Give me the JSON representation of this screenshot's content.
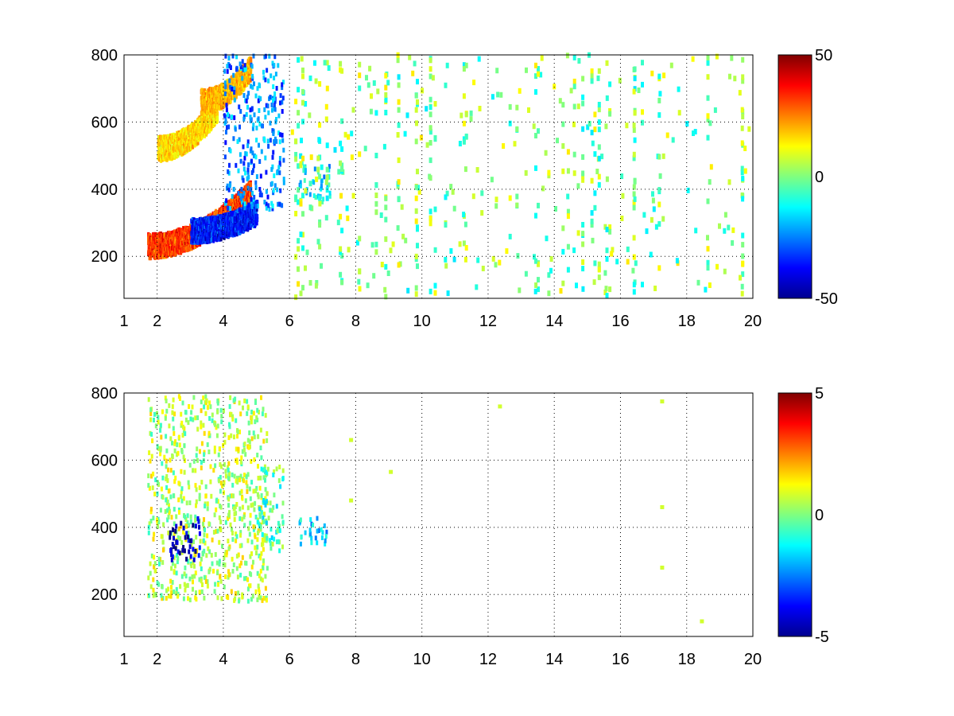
{
  "chart_data": [
    {
      "type": "heatmap",
      "title": "",
      "xlabel": "",
      "ylabel": "",
      "xlim": [
        1,
        20
      ],
      "ylim": [
        75,
        800
      ],
      "xticks": [
        1,
        2,
        4,
        6,
        8,
        10,
        12,
        14,
        16,
        18,
        20
      ],
      "yticks": [
        200,
        400,
        600,
        800
      ],
      "grid": true,
      "colormap": "jet",
      "clim": [
        -50,
        50
      ],
      "colorbar_ticks": [
        -50,
        0,
        50
      ],
      "features": [
        {
          "kind": "ridge",
          "x_range": [
            1.7,
            4.8
          ],
          "y_at_start": 230,
          "y_at_end": 390,
          "value": 40
        },
        {
          "kind": "ridge",
          "x_range": [
            3.0,
            5.0
          ],
          "y_at_start": 275,
          "y_at_end": 330,
          "value": -45
        },
        {
          "kind": "ridge",
          "x_range": [
            2.0,
            3.8
          ],
          "y_at_start": 520,
          "y_at_end": 640,
          "value": 20
        },
        {
          "kind": "ridge",
          "x_range": [
            3.3,
            4.8
          ],
          "y_at_start": 660,
          "y_at_end": 760,
          "value": 25
        },
        {
          "kind": "blob",
          "x_range": [
            4.0,
            5.8
          ],
          "y_range": [
            340,
            800
          ],
          "value": -25
        },
        {
          "kind": "blob",
          "x_range": [
            6.2,
            7.2
          ],
          "y_range": [
            360,
            480
          ],
          "value": -15
        },
        {
          "kind": "scatter",
          "x_range": [
            6,
            20
          ],
          "y_range": [
            75,
            800
          ],
          "value_range": [
            -15,
            15
          ]
        }
      ]
    },
    {
      "type": "heatmap",
      "title": "",
      "xlabel": "",
      "ylabel": "",
      "xlim": [
        1,
        20
      ],
      "ylim": [
        75,
        800
      ],
      "xticks": [
        1,
        2,
        4,
        6,
        8,
        10,
        12,
        14,
        16,
        18,
        20
      ],
      "yticks": [
        200,
        400,
        600,
        800
      ],
      "grid": true,
      "colormap": "jet",
      "clim": [
        -5,
        5
      ],
      "colorbar_ticks": [
        -5,
        0,
        5
      ],
      "features": [
        {
          "kind": "blob",
          "x_range": [
            1.7,
            5.3
          ],
          "y_range": [
            180,
            790
          ],
          "value": 0.5
        },
        {
          "kind": "blob",
          "x_range": [
            2.3,
            3.3
          ],
          "y_range": [
            300,
            430
          ],
          "value": -4.5
        },
        {
          "kind": "blob",
          "x_range": [
            5.0,
            5.8
          ],
          "y_range": [
            330,
            580
          ],
          "value": -0.5
        },
        {
          "kind": "blob",
          "x_range": [
            6.1,
            7.1
          ],
          "y_range": [
            350,
            430
          ],
          "value": -1.8
        },
        {
          "kind": "points",
          "xy": [
            [
              7.8,
              480
            ],
            [
              7.8,
              660
            ],
            [
              9.0,
              565
            ],
            [
              12.3,
              760
            ],
            [
              17.2,
              775
            ],
            [
              17.2,
              460
            ],
            [
              17.2,
              280
            ],
            [
              18.4,
              120
            ]
          ],
          "value": 0.8
        }
      ]
    }
  ]
}
